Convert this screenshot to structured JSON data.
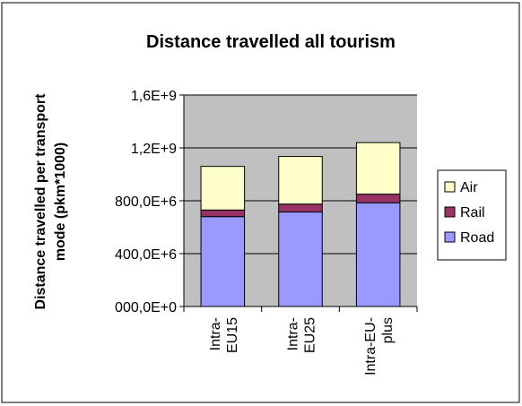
{
  "chart_data": {
    "type": "bar",
    "stacked": true,
    "title": "Distance travelled all tourism",
    "ylabel": "Distance travelled per transport mode (pkm*1000)",
    "ylabel_lines": [
      "Distance travelled per transport",
      "mode (pkm*1000)"
    ],
    "xlabel": "",
    "categories": [
      "Intra-EU15",
      "Intra-EU25",
      "Intra-EU-plus"
    ],
    "category_label_lines": [
      [
        "Intra-",
        "EU15"
      ],
      [
        "Intra-",
        "EU25"
      ],
      [
        "Intra-EU-",
        "plus"
      ]
    ],
    "ylim": [
      0,
      1600000000
    ],
    "yticks": [
      0,
      400000000,
      800000000,
      1200000000,
      1600000000
    ],
    "ytick_labels": [
      "000,0E+0",
      "400,0E+6",
      "800,0E+6",
      "1,2E+9",
      "1,6E+9"
    ],
    "grid": true,
    "legend_position": "right",
    "series": [
      {
        "name": "Road",
        "color": "#9999ff",
        "values": [
          680000000,
          715000000,
          785000000
        ]
      },
      {
        "name": "Rail",
        "color": "#993366",
        "values": [
          50000000,
          60000000,
          65000000
        ]
      },
      {
        "name": "Air",
        "color": "#ffffcc",
        "values": [
          330000000,
          360000000,
          390000000
        ]
      }
    ],
    "legend_order": [
      "Air",
      "Rail",
      "Road"
    ],
    "colors": {
      "plot_background": "#c0c0c0",
      "axis": "#000000"
    }
  }
}
